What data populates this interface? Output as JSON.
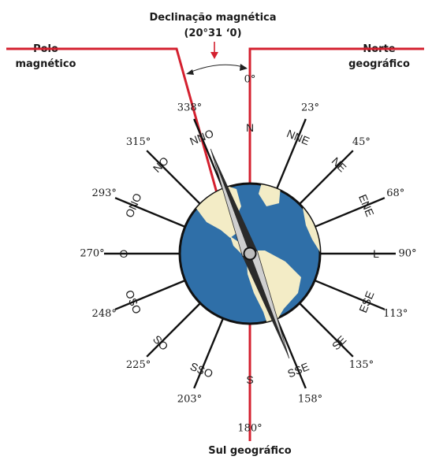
{
  "header": {
    "title_line1": "Declinação magnética",
    "title_line2": "(20°31 ‘0)"
  },
  "labels": {
    "magnetic_pole_line1": "Polo",
    "magnetic_pole_line2": "magnético",
    "geographic_north_line1": "Norte",
    "geographic_north_line2": "geográfico",
    "geographic_south": "Sul geográfico"
  },
  "colors": {
    "red_line": "#d4202f",
    "spokes": "#111111",
    "ocean": "#2f6fa8",
    "land": "#f3ecc6",
    "needle_light": "#cfcfcf",
    "needle_dark": "#2a2a2a"
  },
  "declination_degrees": 20.5,
  "compass_points": [
    {
      "dir": "N",
      "deg": "0°"
    },
    {
      "dir": "NNE",
      "deg": "23°"
    },
    {
      "dir": "NE",
      "deg": "45°"
    },
    {
      "dir": "ENE",
      "deg": "68°"
    },
    {
      "dir": "L",
      "deg": "90°"
    },
    {
      "dir": "ESE",
      "deg": "113°"
    },
    {
      "dir": "SE",
      "deg": "135°"
    },
    {
      "dir": "SSE",
      "deg": "158°"
    },
    {
      "dir": "S",
      "deg": "180°"
    },
    {
      "dir": "SSO",
      "deg": "203°"
    },
    {
      "dir": "SO",
      "deg": "225°"
    },
    {
      "dir": "OSO",
      "deg": "248°"
    },
    {
      "dir": "O",
      "deg": "270°"
    },
    {
      "dir": "ONO",
      "deg": "293°"
    },
    {
      "dir": "NO",
      "deg": "315°"
    },
    {
      "dir": "NNO",
      "deg": "338°"
    }
  ]
}
